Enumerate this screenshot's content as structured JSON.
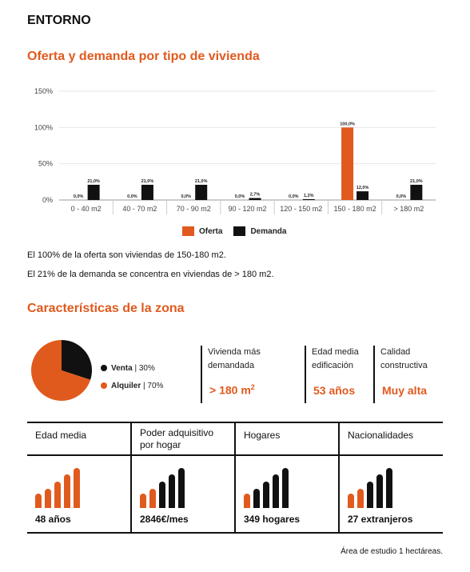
{
  "header": {
    "title": "ENTORNO"
  },
  "offer_section": {
    "title": "Oferta y demanda por tipo de vivienda",
    "legend": [
      "Oferta",
      "Demanda"
    ],
    "notes": [
      "El 100% de la oferta son viviendas de 150-180 m2.",
      "El 21% de la demanda se concentra en viviendas de > 180 m2."
    ]
  },
  "chart_data": {
    "type": "bar",
    "title": "",
    "xlabel": "",
    "ylabel": "",
    "ylim": [
      0,
      150
    ],
    "yticks": [
      "0%",
      "50%",
      "100%",
      "150%"
    ],
    "grid": true,
    "legend_position": "bottom",
    "categories": [
      "0 - 40 m2",
      "40 - 70 m2",
      "70 - 90 m2",
      "90 - 120 m2",
      "120 - 150 m2",
      "150 - 180 m2",
      "> 180 m2"
    ],
    "series": [
      {
        "name": "Oferta",
        "color": "#e05a1e",
        "values": [
          0,
          0,
          0,
          0,
          0,
          100,
          0
        ],
        "labels": [
          "0,0%",
          "0,0%",
          "0,0%",
          "0,0%",
          "0,0%",
          "100,0%",
          "0,0%"
        ]
      },
      {
        "name": "Demanda",
        "color": "#111111",
        "values": [
          21,
          21,
          21,
          2.7,
          1.2,
          12,
          21
        ],
        "labels": [
          "21,0%",
          "21,0%",
          "21,0%",
          "2,7%",
          "1,2%",
          "12,0%",
          "21,0%"
        ]
      }
    ]
  },
  "zona": {
    "title": "Características de la zona",
    "pie": {
      "slices": [
        {
          "label": "Venta",
          "pct": "30%",
          "value": 30,
          "color": "#111111"
        },
        {
          "label": "Alquiler",
          "pct": "70%",
          "value": 70,
          "color": "#e05a1e"
        }
      ]
    },
    "kpis": [
      {
        "label_line1": "Vivienda más",
        "label_line2": "demandada",
        "value": "> 180 m",
        "sup": "2"
      },
      {
        "label_line1": "Edad media",
        "label_line2": "edificación",
        "value": "53 años",
        "sup": ""
      },
      {
        "label_line1": "Calidad",
        "label_line2": "constructiva",
        "value": "Muy alta",
        "sup": ""
      }
    ]
  },
  "stats": [
    {
      "head1": "Edad media",
      "head2": "",
      "value": "48 años",
      "level": 5
    },
    {
      "head1": "Poder adquisitivo",
      "head2": "por hogar",
      "value": "2846€/mes",
      "level": 2
    },
    {
      "head1": "Hogares",
      "head2": "",
      "value": "349 hogares",
      "level": 1
    },
    {
      "head1": "Nacionalidades",
      "head2": "",
      "value": "27 extranjeros",
      "level": 2
    }
  ],
  "colors": {
    "accent": "#e05a1e",
    "dark": "#111111"
  },
  "footer": {
    "text": "Área de estudio 1 hectáreas."
  }
}
